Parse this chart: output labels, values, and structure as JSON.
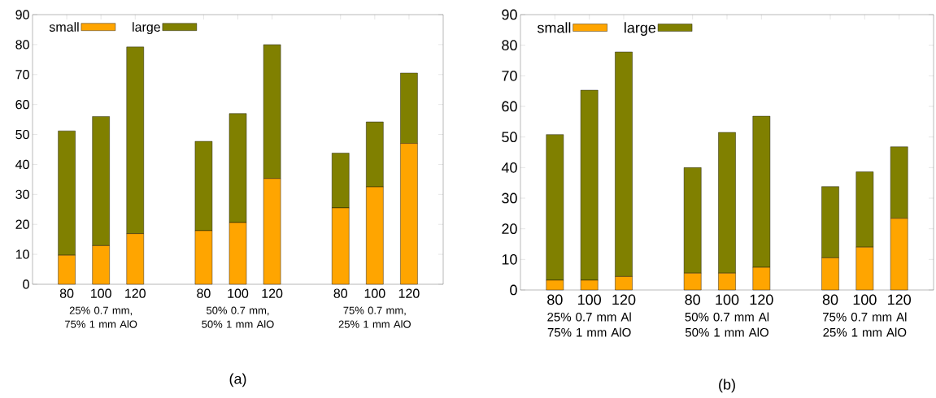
{
  "chart_data": [
    {
      "type": "bar",
      "title": "(a)",
      "stacked": true,
      "legend": "top left",
      "categories": [
        "80",
        "100",
        "120",
        null,
        "80",
        "100",
        "120",
        null,
        "80",
        "100",
        "120"
      ],
      "series": [
        {
          "name": "small",
          "color": "#ffa500",
          "values": [
            9.7,
            12.9,
            16.9,
            null,
            17.9,
            20.6,
            35.3,
            null,
            25.5,
            32.5,
            47.0
          ]
        },
        {
          "name": "large",
          "color": "#808000",
          "values": [
            41.5,
            43.1,
            62.3,
            null,
            29.8,
            36.4,
            44.7,
            null,
            18.3,
            21.7,
            23.5
          ]
        }
      ],
      "ylim": [
        0,
        90
      ],
      "yticks": [
        0,
        10,
        20,
        30,
        40,
        50,
        60,
        70,
        80,
        90
      ],
      "annotations": [
        "25% 0.7 mm, 75% 1 mm AlO",
        "50% 0.7 mm, 50% 1 mm AlO",
        "75% 0.7 mm, 25% 1 mm AlO"
      ]
    },
    {
      "type": "bar",
      "title": "(b)",
      "stacked": true,
      "legend": "top left",
      "categories": [
        "80",
        "100",
        "120",
        null,
        "80",
        "100",
        "120",
        null,
        "80",
        "100",
        "120"
      ],
      "series": [
        {
          "name": "small",
          "color": "#ffa500",
          "values": [
            3.2,
            3.2,
            4.4,
            null,
            5.5,
            5.5,
            7.4,
            null,
            10.5,
            14.0,
            23.4
          ]
        },
        {
          "name": "large",
          "color": "#808000",
          "values": [
            47.6,
            62.1,
            73.4,
            null,
            34.5,
            46.0,
            49.4,
            null,
            23.3,
            24.6,
            23.4
          ]
        }
      ],
      "ylim": [
        0,
        90
      ],
      "yticks": [
        0,
        10,
        20,
        30,
        40,
        50,
        60,
        70,
        80,
        90
      ],
      "annotations": [
        "25% 0.7 mm Al 75% 1 mm AlO",
        "50% 0.7 mm Al 50% 1 mm AlO",
        "75% 0.7 mm Al 25% 1 mm AlO"
      ]
    }
  ]
}
